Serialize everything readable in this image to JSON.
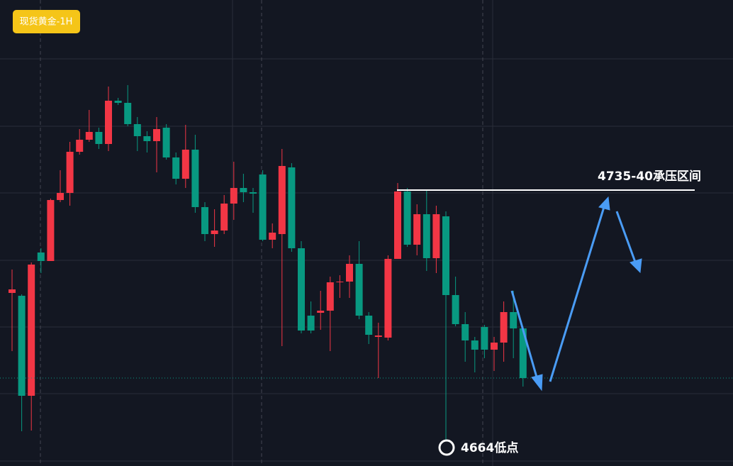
{
  "header": {
    "badge": "现货黄金-1H"
  },
  "chart_data": {
    "type": "candlestick",
    "categories": [
      null,
      null,
      null,
      null,
      null,
      null,
      null,
      null,
      null,
      null,
      null,
      null,
      null,
      null,
      null,
      null,
      null,
      null,
      null,
      null,
      null,
      null,
      null,
      null,
      null,
      null,
      null,
      null,
      null,
      null,
      null,
      null,
      null,
      null,
      null,
      null,
      null,
      null,
      null,
      null,
      null,
      null,
      null,
      null,
      null,
      null,
      null,
      null,
      null,
      null,
      null,
      null,
      null,
      null
    ],
    "open": [
      4705.4,
      4704.6,
      4676.4,
      4716.8,
      4714.4,
      4731.6,
      4733.6,
      4745.2,
      4748.6,
      4750.8,
      4747.4,
      4759.6,
      4759,
      4753,
      4749.6,
      4748.2,
      4752,
      4743.6,
      4737.6,
      4745.8,
      4729.6,
      4722,
      4723,
      4730.6,
      4735,
      4733.8,
      4738.8,
      4720.4,
      4722,
      4740.8,
      4718,
      4699,
      4699.8,
      4700.4,
      4708.4,
      4708.6,
      4713.6,
      4699,
      4693,
      4692.8,
      4715,
      4734,
      4719,
      4727.6,
      4715.2,
      4727,
      4704.8,
      4696.6,
      4692,
      4695.8,
      4689.4,
      4691.4,
      4700,
      4695.4
    ],
    "high": [
      4712,
      4705,
      4714,
      4718,
      4732,
      4740,
      4748,
      4751.6,
      4757,
      4752,
      4763.6,
      4760.4,
      4764,
      4755,
      4751,
      4755,
      4753,
      4745,
      4752.8,
      4750,
      4731,
      4729,
      4733,
      4742.4,
      4739,
      4735,
      4740,
      4725,
      4746,
      4742,
      4720,
      4703,
      4706,
      4710,
      4710.4,
      4716,
      4720,
      4700,
      4697,
      4716,
      4736.4,
      4735,
      4730.4,
      4734.4,
      4730,
      4728.4,
      4710,
      4700,
      4693,
      4696.4,
      4693,
      4703,
      4706,
      4696
    ],
    "low": [
      4689,
      4666.4,
      4666.6,
      4711,
      4714.4,
      4731,
      4730,
      4744.4,
      4748,
      4746,
      4745.4,
      4758.4,
      4752.4,
      4745.4,
      4745,
      4739.4,
      4743,
      4736,
      4735,
      4728,
      4720,
      4718.4,
      4722,
      4726,
      4731,
      4728,
      4720,
      4718,
      4690.4,
      4717,
      4694,
      4694,
      4695,
      4689,
      4704,
      4704,
      4698,
      4691,
      4681.4,
      4692,
      4715,
      4718.4,
      4716,
      4711.6,
      4711,
      4664,
      4696,
      4686,
      4683,
      4687,
      4683.4,
      4686,
      4687,
      4679
    ],
    "close": [
      4706.4,
      4676.4,
      4713.4,
      4714.4,
      4731.6,
      4733.6,
      4745.2,
      4748.6,
      4750.8,
      4747.4,
      4759.6,
      4759,
      4753,
      4749.6,
      4748.2,
      4751.6,
      4743.6,
      4737.6,
      4745.8,
      4729.6,
      4722,
      4723,
      4730.6,
      4735,
      4733.8,
      4733.4,
      4720.4,
      4722.4,
      4741.2,
      4718,
      4694.8,
      4694.8,
      4700.4,
      4708.4,
      4708.6,
      4713.6,
      4699,
      4693.6,
      4693.4,
      4715,
      4734,
      4719,
      4727.6,
      4715.2,
      4727.6,
      4704.8,
      4696.6,
      4692,
      4689.4,
      4689.4,
      4691.4,
      4700,
      4695.4,
      4681.4
    ],
    "up_color": "#f23645",
    "down_color": "#089981",
    "ylim": [
      4656.6,
      4788
    ],
    "annotations": {
      "resistance": "4735-40承压区间",
      "low_point": "4664低点"
    }
  }
}
